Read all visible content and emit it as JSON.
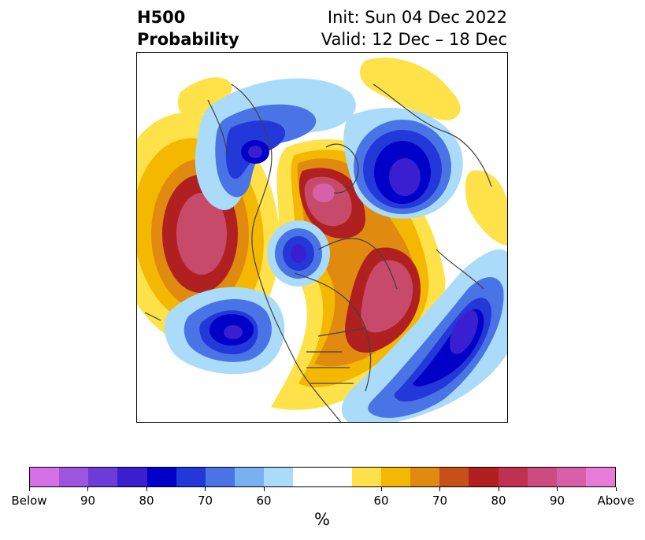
{
  "title": {
    "left_line1": "H500",
    "left_line2": "Probability",
    "right_line1": "Init: Sun 04 Dec 2022",
    "right_line2": "Valid: 12 Dec – 18 Dec"
  },
  "colorbar": {
    "unit": "%",
    "colors": [
      "#d670e6",
      "#9d55e0",
      "#6c3bd8",
      "#3a1fd0",
      "#0000c8",
      "#2238d8",
      "#4a74e6",
      "#78b0f0",
      "#aadcfa",
      "#ffffff",
      "#ffffff",
      "#ffe14a",
      "#f4b800",
      "#e08a10",
      "#c85018",
      "#b02020",
      "#c03050",
      "#cc4c80",
      "#d860a8",
      "#e87ad8"
    ],
    "tick_labels": [
      "Below",
      "90",
      "80",
      "70",
      "60",
      "60",
      "70",
      "80",
      "90",
      "Above"
    ]
  },
  "map": {
    "colors": {
      "above_light": "#ffe14a",
      "above_mid": "#f4b800",
      "above_orange": "#e08a10",
      "above_red": "#b02020",
      "above_pink": "#c84a6a",
      "above_magenta": "#d860a8",
      "below_light": "#aadcfa",
      "below_mid": "#4a74e6",
      "below_blue": "#2238d8",
      "below_deep": "#0000c8",
      "below_purple": "#3a1fd0",
      "coast": "#404040"
    }
  }
}
